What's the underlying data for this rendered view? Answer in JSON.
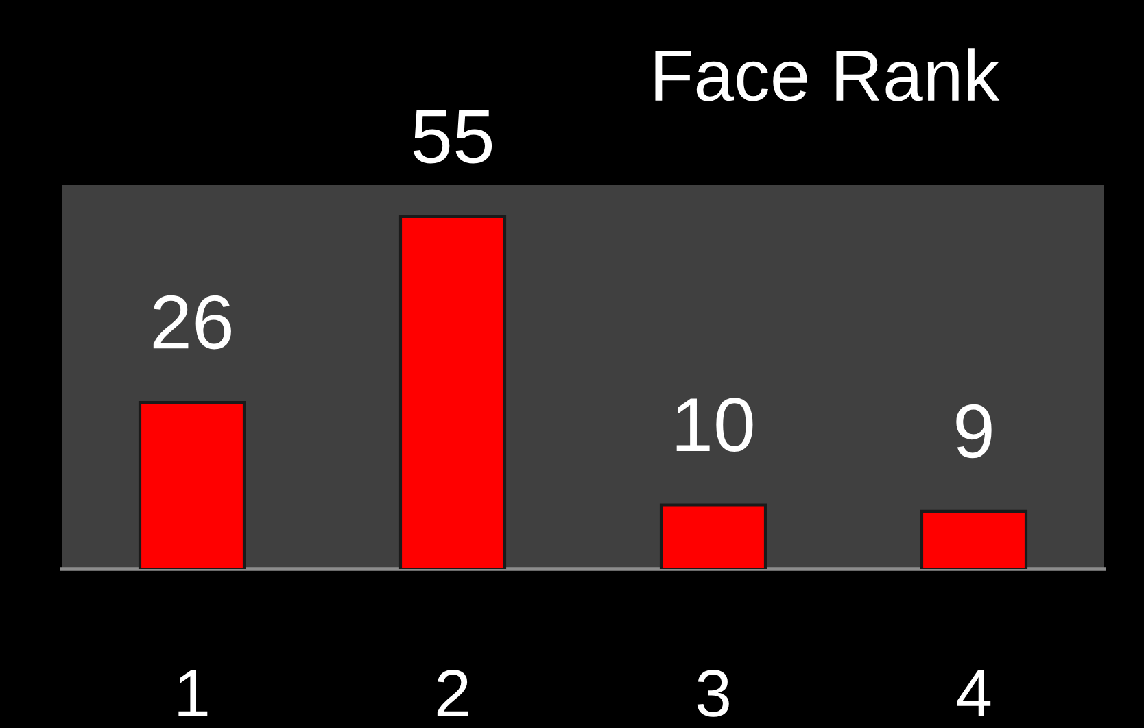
{
  "chart_data": {
    "type": "bar",
    "title": "Face Rank",
    "categories": [
      "1",
      "2",
      "3",
      "4"
    ],
    "values": [
      26,
      55,
      10,
      9
    ],
    "color": "#ff0000",
    "data_labels": true,
    "grid": false,
    "legend": false
  }
}
